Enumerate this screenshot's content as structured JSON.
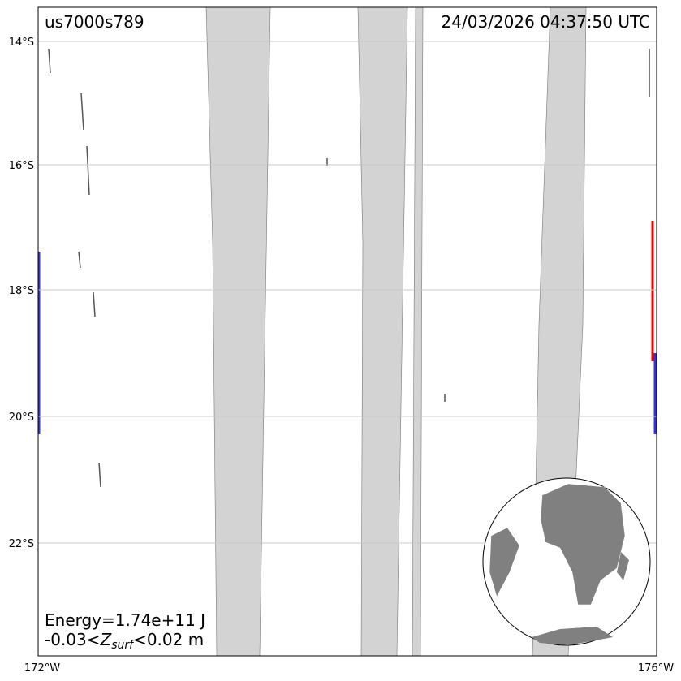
{
  "title": "us7000s789",
  "timestamp": "24/03/2026 04:37:50 UTC",
  "y_axis_labels": [
    "14°S",
    "16°S",
    "18°S",
    "20°S",
    "22°S"
  ],
  "x_axis_labels": [
    "172°W",
    "176°W"
  ],
  "annotation": {
    "energy": "Energy=1.74e+11 J",
    "range_low": "-0.03<",
    "symbol": "Z",
    "subscript": "surf",
    "range_high": "<0.02 m"
  }
}
